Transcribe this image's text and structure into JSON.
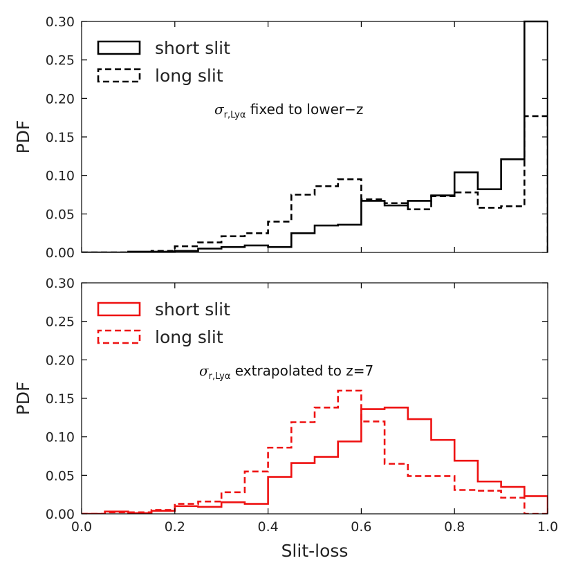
{
  "chart_data": [
    {
      "type": "histogram",
      "title": "",
      "xlabel": "",
      "ylabel": "PDF",
      "xlim": [
        0.0,
        1.0
      ],
      "ylim": [
        0.0,
        0.3
      ],
      "xticks": [
        "0.0",
        "0.2",
        "0.4",
        "0.6",
        "0.8",
        "1.0"
      ],
      "show_x_tick_labels": false,
      "yticks": [
        "0.00",
        "0.05",
        "0.10",
        "0.15",
        "0.20",
        "0.25",
        "0.30"
      ],
      "annotation": {
        "symbol": "σ",
        "sub": "r,Lyα",
        "text": " fixed to lower−z"
      },
      "bin_edges": [
        0.0,
        0.05,
        0.1,
        0.15,
        0.2,
        0.25,
        0.3,
        0.35,
        0.4,
        0.45,
        0.5,
        0.55,
        0.6,
        0.65,
        0.7,
        0.75,
        0.8,
        0.85,
        0.9,
        0.95,
        1.0
      ],
      "series": [
        {
          "name": "short slit",
          "color": "#000000",
          "dash": "solid",
          "values": [
            0.0,
            0.0,
            0.001,
            0.001,
            0.002,
            0.005,
            0.007,
            0.009,
            0.007,
            0.025,
            0.035,
            0.036,
            0.067,
            0.061,
            0.067,
            0.074,
            0.104,
            0.082,
            0.121,
            0.3
          ]
        },
        {
          "name": "long slit",
          "color": "#000000",
          "dash": "dashed",
          "values": [
            0.0,
            0.0,
            0.0,
            0.002,
            0.008,
            0.013,
            0.021,
            0.025,
            0.04,
            0.075,
            0.086,
            0.095,
            0.069,
            0.064,
            0.056,
            0.073,
            0.078,
            0.058,
            0.06,
            0.177
          ]
        }
      ]
    },
    {
      "type": "histogram",
      "title": "",
      "xlabel": "Slit-loss",
      "ylabel": "PDF",
      "xlim": [
        0.0,
        1.0
      ],
      "ylim": [
        0.0,
        0.3
      ],
      "xticks": [
        "0.0",
        "0.2",
        "0.4",
        "0.6",
        "0.8",
        "1.0"
      ],
      "show_x_tick_labels": true,
      "yticks": [
        "0.00",
        "0.05",
        "0.10",
        "0.15",
        "0.20",
        "0.25",
        "0.30"
      ],
      "annotation": {
        "symbol": "σ",
        "sub": "r,Lyα",
        "text": " extrapolated to z=7"
      },
      "bin_edges": [
        0.0,
        0.05,
        0.1,
        0.15,
        0.2,
        0.25,
        0.3,
        0.35,
        0.4,
        0.45,
        0.5,
        0.55,
        0.6,
        0.65,
        0.7,
        0.75,
        0.8,
        0.85,
        0.9,
        0.95,
        1.0
      ],
      "series": [
        {
          "name": "short slit",
          "color": "#ee1111",
          "dash": "solid",
          "values": [
            0.0,
            0.003,
            0.001,
            0.004,
            0.01,
            0.009,
            0.015,
            0.013,
            0.048,
            0.066,
            0.074,
            0.094,
            0.136,
            0.138,
            0.123,
            0.096,
            0.069,
            0.042,
            0.035,
            0.023
          ]
        },
        {
          "name": "long slit",
          "color": "#ee1111",
          "dash": "dashed",
          "values": [
            0.0,
            0.002,
            0.002,
            0.005,
            0.013,
            0.016,
            0.028,
            0.055,
            0.086,
            0.119,
            0.138,
            0.16,
            0.12,
            0.065,
            0.049,
            0.049,
            0.031,
            0.03,
            0.021,
            0.0
          ]
        }
      ]
    }
  ]
}
